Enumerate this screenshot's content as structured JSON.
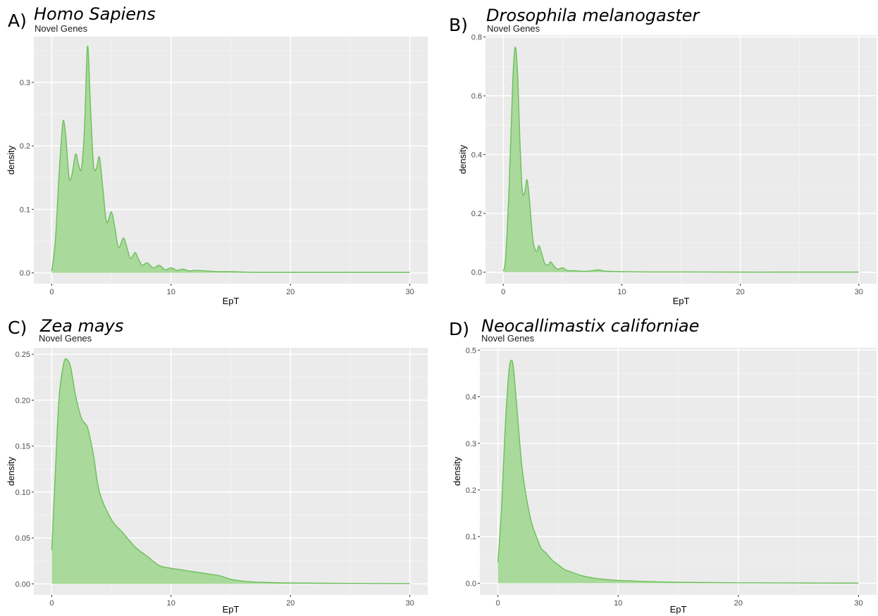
{
  "colors": {
    "panel_bg": "#ebebeb",
    "grid_major": "#ffffff",
    "grid_minor": "#f5f5f5",
    "line": "#6cbf5a",
    "fill": "#a9d99b"
  },
  "panels": [
    {
      "letter": "A)",
      "species": "Homo Sapiens",
      "subtitle": "Novel Genes"
    },
    {
      "letter": "B)",
      "species": "Drosophila melanogaster",
      "subtitle": "Novel Genes"
    },
    {
      "letter": "C)",
      "species": "Zea mays",
      "subtitle": "Novel Genes"
    },
    {
      "letter": "D)",
      "species": "Neocallimastix californiae",
      "subtitle": "Novel Genes"
    }
  ],
  "chart_data": [
    {
      "type": "area",
      "xlabel": "EpT",
      "ylabel": "density",
      "xlim": [
        -1.5,
        31.5
      ],
      "ylim": [
        -0.017,
        0.372
      ],
      "xticks": [
        0,
        10,
        20,
        30
      ],
      "xtick_labels": [
        "0",
        "10",
        "20",
        "30"
      ],
      "yticks": [
        0.0,
        0.1,
        0.2,
        0.3
      ],
      "ytick_labels": [
        "0.0",
        "0.1",
        "0.2",
        "0.3"
      ],
      "x": [
        0,
        0.3,
        0.6,
        0.85,
        1.0,
        1.2,
        1.45,
        1.7,
        2.0,
        2.25,
        2.5,
        2.75,
        3.0,
        3.25,
        3.5,
        3.75,
        4.0,
        4.3,
        4.6,
        5.0,
        5.3,
        5.6,
        6.0,
        6.3,
        6.6,
        7.0,
        7.3,
        7.6,
        8.0,
        8.5,
        9.0,
        9.5,
        10.0,
        10.5,
        11.0,
        11.5,
        12,
        13,
        14,
        15,
        17,
        20,
        25,
        30
      ],
      "y": [
        0.003,
        0.05,
        0.15,
        0.22,
        0.24,
        0.21,
        0.15,
        0.155,
        0.187,
        0.17,
        0.165,
        0.23,
        0.357,
        0.26,
        0.17,
        0.165,
        0.182,
        0.13,
        0.08,
        0.096,
        0.07,
        0.04,
        0.055,
        0.04,
        0.023,
        0.032,
        0.02,
        0.012,
        0.016,
        0.008,
        0.012,
        0.005,
        0.008,
        0.004,
        0.006,
        0.003,
        0.004,
        0.003,
        0.002,
        0.002,
        0.001,
        0.001,
        0.001,
        0.001
      ]
    },
    {
      "type": "area",
      "xlabel": "EpT",
      "ylabel": "density",
      "xlim": [
        -1.5,
        31.5
      ],
      "ylim": [
        -0.039,
        0.806
      ],
      "xticks": [
        0,
        10,
        20,
        30
      ],
      "xtick_labels": [
        "0",
        "10",
        "20",
        "30"
      ],
      "yticks": [
        0.0,
        0.2,
        0.4,
        0.6,
        0.8
      ],
      "ytick_labels": [
        "0.0",
        "0.2",
        "0.4",
        "0.6",
        "0.8"
      ],
      "x": [
        0,
        0.2,
        0.5,
        0.8,
        1.0,
        1.2,
        1.4,
        1.6,
        1.8,
        2.0,
        2.2,
        2.5,
        2.8,
        3.0,
        3.2,
        3.5,
        3.8,
        4.0,
        4.3,
        4.6,
        5.0,
        5.4,
        6.0,
        7.0,
        8.0,
        8.5,
        9.0,
        10.0,
        12,
        15,
        20,
        25,
        30
      ],
      "y": [
        0.005,
        0.05,
        0.3,
        0.65,
        0.765,
        0.68,
        0.45,
        0.28,
        0.27,
        0.315,
        0.25,
        0.11,
        0.07,
        0.09,
        0.07,
        0.03,
        0.025,
        0.035,
        0.02,
        0.01,
        0.015,
        0.006,
        0.005,
        0.003,
        0.008,
        0.004,
        0.003,
        0.002,
        0.001,
        0.001,
        0.0005,
        0.0005,
        0.0005
      ]
    },
    {
      "type": "area",
      "xlabel": "EpT",
      "ylabel": "density",
      "xlim": [
        -1.5,
        31.5
      ],
      "ylim": [
        -0.012,
        0.257
      ],
      "xticks": [
        0,
        10,
        20,
        30
      ],
      "xtick_labels": [
        "0",
        "10",
        "20",
        "30"
      ],
      "yticks": [
        0.0,
        0.05,
        0.1,
        0.15,
        0.2,
        0.25
      ],
      "ytick_labels": [
        "0.00",
        "0.05",
        "0.10",
        "0.15",
        "0.20",
        "0.25"
      ],
      "x": [
        0,
        0.3,
        0.6,
        1.0,
        1.3,
        1.6,
        2.0,
        2.5,
        3.0,
        3.5,
        4.0,
        5.0,
        6.0,
        7.0,
        8.0,
        9.0,
        10.0,
        11.0,
        12.0,
        13.0,
        14.0,
        15.0,
        16.0,
        17.0,
        18.0,
        20,
        25,
        30
      ],
      "y": [
        0.037,
        0.12,
        0.2,
        0.24,
        0.244,
        0.235,
        0.205,
        0.18,
        0.17,
        0.14,
        0.1,
        0.07,
        0.055,
        0.04,
        0.03,
        0.02,
        0.017,
        0.015,
        0.013,
        0.011,
        0.009,
        0.005,
        0.003,
        0.002,
        0.0015,
        0.001,
        0.0005,
        0.0003
      ]
    },
    {
      "type": "area",
      "xlabel": "EpT",
      "ylabel": "density",
      "xlim": [
        -1.5,
        31.5
      ],
      "ylim": [
        -0.025,
        0.505
      ],
      "xticks": [
        0,
        10,
        20,
        30
      ],
      "xtick_labels": [
        "0",
        "10",
        "20",
        "30"
      ],
      "yticks": [
        0.0,
        0.1,
        0.2,
        0.3,
        0.4,
        0.5
      ],
      "ytick_labels": [
        "0.0",
        "0.1",
        "0.2",
        "0.3",
        "0.4",
        "0.5"
      ],
      "x": [
        0,
        0.3,
        0.6,
        0.9,
        1.1,
        1.3,
        1.6,
        2.0,
        2.4,
        2.8,
        3.2,
        3.6,
        4.0,
        4.5,
        5.0,
        5.5,
        6.0,
        7.0,
        8.0,
        9.0,
        10.0,
        11.0,
        12,
        15,
        20,
        25,
        30
      ],
      "y": [
        0.045,
        0.16,
        0.33,
        0.45,
        0.478,
        0.46,
        0.37,
        0.25,
        0.18,
        0.13,
        0.1,
        0.075,
        0.065,
        0.05,
        0.04,
        0.03,
        0.025,
        0.016,
        0.011,
        0.008,
        0.006,
        0.005,
        0.004,
        0.002,
        0.001,
        0.0005,
        0.0003
      ]
    }
  ]
}
